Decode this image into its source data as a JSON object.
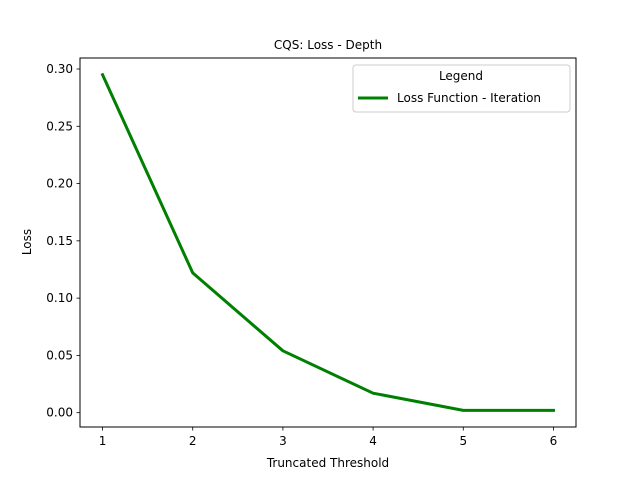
{
  "chart_data": {
    "type": "line",
    "title": "CQS: Loss - Depth",
    "xlabel": "Truncated Threshold",
    "ylabel": "Loss",
    "x": [
      1,
      2,
      3,
      4,
      5,
      6
    ],
    "series": [
      {
        "name": "Loss Function - Iteration",
        "values": [
          0.295,
          0.122,
          0.054,
          0.017,
          0.002,
          0.002
        ],
        "color": "#008000"
      }
    ],
    "xlim": [
      0.75,
      6.25
    ],
    "ylim": [
      -0.0125,
      0.3096
    ],
    "xticks": [
      1,
      2,
      3,
      4,
      5,
      6
    ],
    "xtick_labels": [
      "1",
      "2",
      "3",
      "4",
      "5",
      "6"
    ],
    "yticks": [
      0.0,
      0.05,
      0.1,
      0.15,
      0.2,
      0.25,
      0.3
    ],
    "ytick_labels": [
      "0.00",
      "0.05",
      "0.10",
      "0.15",
      "0.20",
      "0.25",
      "0.30"
    ],
    "grid": false,
    "legend": {
      "title": "Legend",
      "placement": "top-right"
    }
  }
}
